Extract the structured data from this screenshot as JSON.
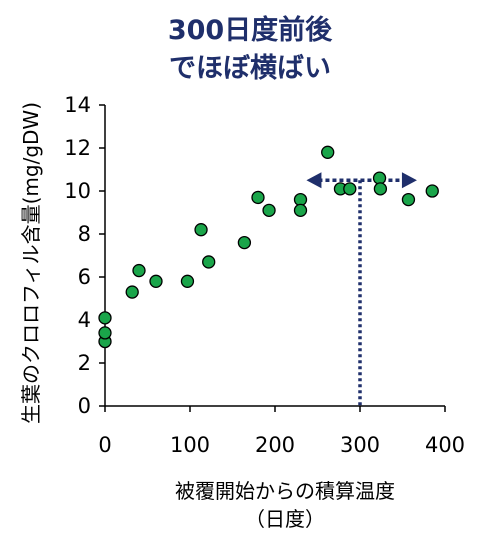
{
  "annotation": {
    "line1": "300日度前後",
    "line2": "でほぼ横ばい",
    "color": "#1f2f6b"
  },
  "chart_data": {
    "type": "scatter",
    "title": "",
    "xlabel_line1": "被覆開始からの積算温度",
    "xlabel_line2": "（日度）",
    "ylabel": "生葉のクロロフィル含量(mg/gDW)",
    "xlim": [
      0,
      400
    ],
    "ylim": [
      0,
      14
    ],
    "xticks": [
      0,
      100,
      200,
      300,
      400
    ],
    "yticks": [
      0,
      2,
      4,
      6,
      8,
      10,
      12,
      14
    ],
    "grid": false,
    "marker_color": "#1aa54a",
    "points": [
      {
        "x": 0,
        "y": 3.0
      },
      {
        "x": 0,
        "y": 3.4
      },
      {
        "x": 0,
        "y": 4.1
      },
      {
        "x": 32,
        "y": 5.3
      },
      {
        "x": 40,
        "y": 6.3
      },
      {
        "x": 60,
        "y": 5.8
      },
      {
        "x": 97,
        "y": 5.8
      },
      {
        "x": 113,
        "y": 8.2
      },
      {
        "x": 122,
        "y": 6.7
      },
      {
        "x": 164,
        "y": 7.6
      },
      {
        "x": 180,
        "y": 9.7
      },
      {
        "x": 193,
        "y": 9.1
      },
      {
        "x": 230,
        "y": 9.6
      },
      {
        "x": 230,
        "y": 9.1
      },
      {
        "x": 262,
        "y": 11.8
      },
      {
        "x": 277,
        "y": 10.1
      },
      {
        "x": 288,
        "y": 10.1
      },
      {
        "x": 323,
        "y": 10.6
      },
      {
        "x": 324,
        "y": 10.1
      },
      {
        "x": 357,
        "y": 9.6
      },
      {
        "x": 385,
        "y": 10.0
      }
    ],
    "arrow": {
      "x_from": 237,
      "x_to": 367,
      "y": 10.5
    },
    "dotted_vline": {
      "x": 300,
      "y_from": 0,
      "y_to": 10.5
    }
  }
}
